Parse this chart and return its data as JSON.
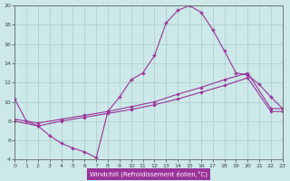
{
  "xlabel": "Windchill (Refroidissement éolien,°C)",
  "bg_color": "#cce8e8",
  "line_color": "#993399",
  "grid_color": "#aacccc",
  "xlim": [
    0,
    23
  ],
  "ylim": [
    4,
    20
  ],
  "yticks": [
    4,
    6,
    8,
    10,
    12,
    14,
    16,
    18,
    20
  ],
  "xticks": [
    0,
    1,
    2,
    3,
    4,
    5,
    6,
    7,
    8,
    9,
    10,
    11,
    12,
    13,
    14,
    15,
    16,
    17,
    18,
    19,
    20,
    21,
    22,
    23
  ],
  "s1_x": [
    0,
    1,
    2,
    3,
    4,
    5,
    6,
    7,
    8,
    9,
    10,
    11,
    12,
    13,
    14,
    15,
    16,
    17,
    18,
    19,
    20,
    21,
    22,
    23
  ],
  "s1_y": [
    10.3,
    8.0,
    7.5,
    6.5,
    5.7,
    5.2,
    4.8,
    4.2,
    9.0,
    10.5,
    12.3,
    13.0,
    14.8,
    18.2,
    19.5,
    20.0,
    19.3,
    17.5,
    15.3,
    13.0,
    12.8,
    11.8,
    10.5,
    9.3
  ],
  "s2_x": [
    0,
    2,
    4,
    6,
    8,
    10,
    12,
    14,
    16,
    18,
    20,
    22,
    23
  ],
  "s2_y": [
    8.2,
    7.8,
    8.2,
    8.6,
    9.0,
    9.5,
    10.0,
    10.8,
    11.5,
    12.3,
    13.0,
    9.3,
    9.3
  ],
  "s3_x": [
    0,
    2,
    4,
    6,
    8,
    10,
    12,
    14,
    16,
    18,
    20,
    22,
    23
  ],
  "s3_y": [
    8.0,
    7.5,
    8.0,
    8.4,
    8.8,
    9.2,
    9.7,
    10.3,
    11.0,
    11.7,
    12.5,
    9.0,
    9.0
  ]
}
